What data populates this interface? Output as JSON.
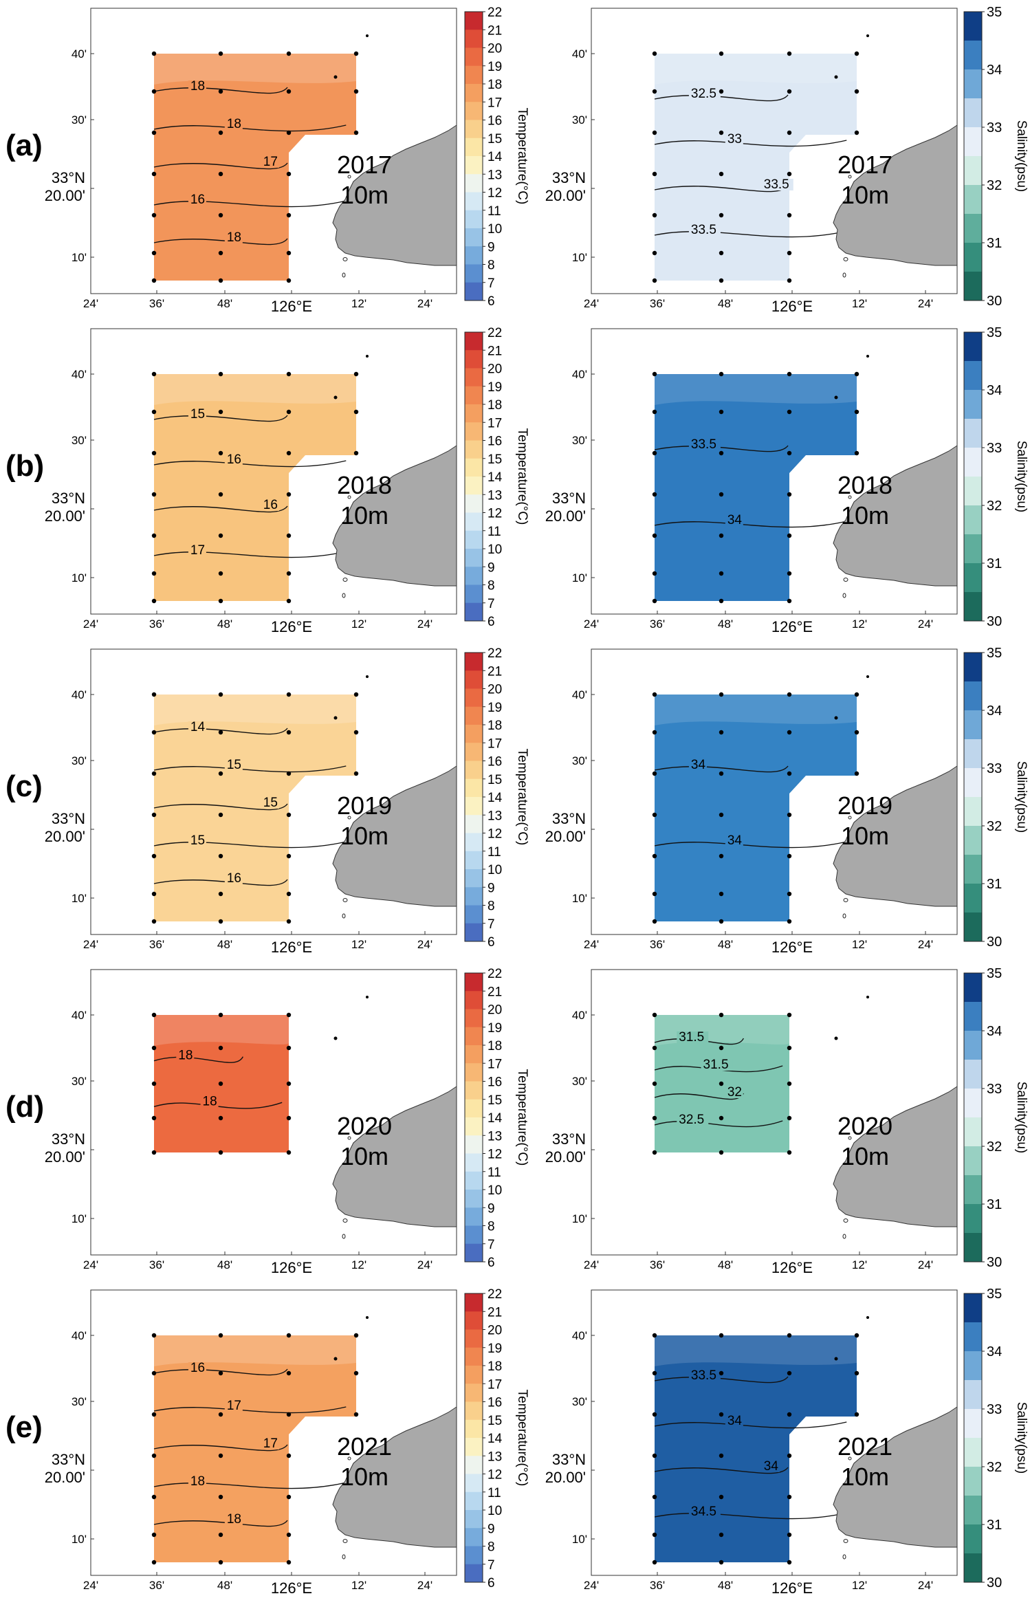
{
  "rows": [
    {
      "label": "(a)",
      "year": "2017",
      "depth": "10m",
      "temp_contours": [
        "18",
        "18",
        "17",
        "16",
        "18"
      ],
      "sal_contours": [
        "32.5",
        "33",
        "33.5",
        "33.5"
      ]
    },
    {
      "label": "(b)",
      "year": "2018",
      "depth": "10m",
      "temp_contours": [
        "15",
        "16",
        "16",
        "17"
      ],
      "sal_contours": [
        "33.5",
        "34"
      ]
    },
    {
      "label": "(c)",
      "year": "2019",
      "depth": "10m",
      "temp_contours": [
        "14",
        "15",
        "15",
        "15",
        "16"
      ],
      "sal_contours": [
        "34",
        "34"
      ]
    },
    {
      "label": "(d)",
      "year": "2020",
      "depth": "10m",
      "temp_contours": [
        "18",
        "18"
      ],
      "sal_contours": [
        "31.5",
        "31.5",
        "32",
        "32.5"
      ]
    },
    {
      "label": "(e)",
      "year": "2021",
      "depth": "10m",
      "temp_contours": [
        "16",
        "17",
        "17",
        "18",
        "18"
      ],
      "sal_contours": [
        "33.5",
        "34",
        "34",
        "34.5"
      ]
    }
  ],
  "axes": {
    "x_ticks": [
      "24'",
      "36'",
      "48'",
      "126°E",
      "12'",
      "24'"
    ],
    "y_ticks": [
      "40'",
      "30'",
      "33°N\n20.00'",
      "10'"
    ]
  },
  "colorbars": {
    "temperature": {
      "title": "Temperature(°C)",
      "ticks": [
        "22",
        "21",
        "20",
        "19",
        "18",
        "17",
        "16",
        "15",
        "14",
        "13",
        "12",
        "11",
        "10",
        "9",
        "8",
        "7",
        "6"
      ]
    },
    "salinity": {
      "title": "Salinity(psu)",
      "ticks": [
        "35",
        "34",
        "33",
        "32",
        "31",
        "30"
      ]
    }
  },
  "colors": {
    "temp_field": {
      "2017": "#f2955a",
      "2018": "#f8c47e",
      "2019": "#fad496",
      "2020": "#ec6a40",
      "2021": "#f4a160"
    },
    "sal_field": {
      "2017": "#dde8f4",
      "2018": "#2f7bbf",
      "2019": "#3483c4",
      "2020": "#7fc6b2",
      "2021": "#1f5ea3"
    },
    "island": "#a9a9a9"
  }
}
